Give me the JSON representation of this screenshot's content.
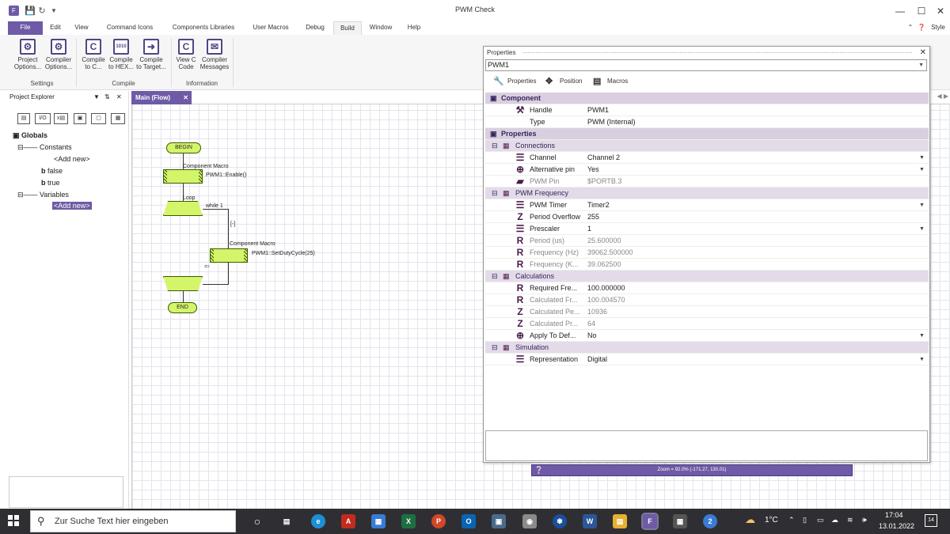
{
  "window": {
    "title": "PWM Check",
    "style_label": "Style"
  },
  "menu": [
    "File",
    "Edit",
    "View",
    "Command Icons",
    "Components Libraries",
    "User Macros",
    "Debug",
    "Build",
    "Window",
    "Help"
  ],
  "ribbon": {
    "buttons": [
      {
        "l1": "Project",
        "l2": "Options..."
      },
      {
        "l1": "Compiler",
        "l2": "Options..."
      },
      {
        "l1": "Compile",
        "l2": "to C..."
      },
      {
        "l1": "Compile",
        "l2": "to HEX..."
      },
      {
        "l1": "Compile",
        "l2": "to Target..."
      },
      {
        "l1": "View C",
        "l2": "Code"
      },
      {
        "l1": "Compiler",
        "l2": "Messages"
      }
    ],
    "groups": [
      "Settings",
      "Compile",
      "Information"
    ]
  },
  "project_explorer": {
    "title": "Project Explorer",
    "globals": "Globals",
    "constants": "Constants",
    "add_new": "<Add new>",
    "false_label": "false",
    "true_label": "true",
    "variables": "Variables",
    "add_new_var": "<Add new>"
  },
  "flow": {
    "tab": "Main (Flow)",
    "begin": "BEGIN",
    "end": "END",
    "macro1_title": "Component Macro",
    "macro1_call": "PWM1::Enable()",
    "loop_label": "Loop",
    "while_label": "while 1",
    "minus": "[-]",
    "macro2_title": "Component Macro",
    "macro2_call": "PWM1::SetDutyCycle(25)"
  },
  "properties": {
    "title": "Properties",
    "selected": "PWM1",
    "tabs": [
      "Properties",
      "Position",
      "Macros"
    ],
    "rows": [
      {
        "kind": "sec",
        "k": "Component"
      },
      {
        "kind": "row",
        "k": "Handle",
        "v": "PWM1",
        "ic": "⚒"
      },
      {
        "kind": "row",
        "k": "Type",
        "v": "PWM (Internal)",
        "ic": ""
      },
      {
        "kind": "sec",
        "k": "Properties"
      },
      {
        "kind": "sub",
        "k": "Connections"
      },
      {
        "kind": "row",
        "k": "Channel",
        "v": "Channel 2",
        "ic": "☰",
        "dd": true
      },
      {
        "kind": "row",
        "k": "Alternative pin",
        "v": "Yes",
        "ic": "⊕",
        "dd": true
      },
      {
        "kind": "row",
        "k": "PWM Pin",
        "v": "$PORTB.3",
        "ic": "▰",
        "ro": true
      },
      {
        "kind": "sub",
        "k": "PWM Frequency"
      },
      {
        "kind": "row",
        "k": "PWM Timer",
        "v": "Timer2",
        "ic": "☰",
        "dd": true
      },
      {
        "kind": "row",
        "k": "Period Overflow",
        "v": "255",
        "ic": "Z"
      },
      {
        "kind": "row",
        "k": "Prescaler",
        "v": "1",
        "ic": "☰",
        "dd": true
      },
      {
        "kind": "row",
        "k": "Period (us)",
        "v": "25.600000",
        "ic": "R",
        "ro": true
      },
      {
        "kind": "row",
        "k": "Frequency (Hz)",
        "v": "39062.500000",
        "ic": "R",
        "ro": true
      },
      {
        "kind": "row",
        "k": "Frequency (K...",
        "v": "39.062500",
        "ic": "R",
        "ro": true
      },
      {
        "kind": "sub",
        "k": "Calculations"
      },
      {
        "kind": "row",
        "k": "Required Fre...",
        "v": "100.000000",
        "ic": "R"
      },
      {
        "kind": "row",
        "k": "Calculated Fr...",
        "v": "100.004570",
        "ic": "R",
        "ro": true
      },
      {
        "kind": "row",
        "k": "Calculated Pe...",
        "v": "10936",
        "ic": "Z",
        "ro": true
      },
      {
        "kind": "row",
        "k": "Calculated Pr...",
        "v": "64",
        "ic": "Z",
        "ro": true
      },
      {
        "kind": "row",
        "k": "Apply To Def...",
        "v": "No",
        "ic": "⊕",
        "dd": true
      },
      {
        "kind": "sub",
        "k": "Simulation"
      },
      {
        "kind": "row",
        "k": "Representation",
        "v": "Digital",
        "ic": "☰",
        "dd": true
      }
    ]
  },
  "zoom_text": "Zoom = 92.0% (-171.27, 130.01)",
  "taskbar": {
    "search_placeholder": "Zur Suche Text hier eingeben",
    "weather": "1°C",
    "time": "17:04",
    "date": "13.01.2022",
    "notifications": "14"
  }
}
